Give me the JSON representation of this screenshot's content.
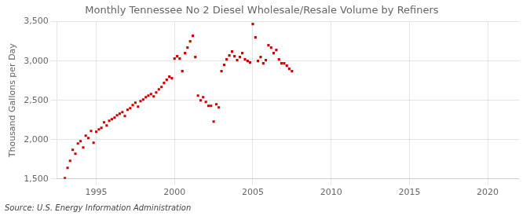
{
  "chart_data": {
    "type": "scatter",
    "title": "Monthly Tennessee No 2 Diesel Wholesale/Resale Volume by Refiners",
    "ylabel": "Thousand Gallons per Day",
    "annotation": "Source: U.S. Energy Information Administration",
    "color": "#cc0000",
    "marker": "square",
    "grid": true,
    "xlim": [
      1992.5,
      2022
    ],
    "ylim": [
      1500,
      3500
    ],
    "xticks": [
      1995,
      2000,
      2005,
      2010,
      2015,
      2020
    ],
    "yticks": [
      {
        "value": 1500,
        "label": "1,500"
      },
      {
        "value": 2000,
        "label": "2,000"
      },
      {
        "value": 2500,
        "label": "2,500"
      },
      {
        "value": 3000,
        "label": "3,000"
      },
      {
        "value": 3500,
        "label": "3,500"
      }
    ],
    "x": [
      1993.0,
      1993.17,
      1993.33,
      1993.5,
      1993.67,
      1993.83,
      1994.0,
      1994.17,
      1994.33,
      1994.5,
      1994.67,
      1994.83,
      1995.0,
      1995.17,
      1995.33,
      1995.5,
      1995.67,
      1995.83,
      1996.0,
      1996.17,
      1996.33,
      1996.5,
      1996.67,
      1996.83,
      1997.0,
      1997.17,
      1997.33,
      1997.5,
      1997.67,
      1997.83,
      1998.0,
      1998.17,
      1998.33,
      1998.5,
      1998.67,
      1998.83,
      1999.0,
      1999.17,
      1999.33,
      1999.5,
      1999.67,
      1999.83,
      2000.0,
      2000.17,
      2000.33,
      2000.5,
      2000.67,
      2000.83,
      2001.0,
      2001.17,
      2001.33,
      2001.5,
      2001.67,
      2001.83,
      2002.0,
      2002.17,
      2002.33,
      2002.5,
      2002.67,
      2002.83,
      2003.0,
      2003.17,
      2003.33,
      2003.5,
      2003.67,
      2003.83,
      2004.0,
      2004.17,
      2004.33,
      2004.5,
      2004.67,
      2004.83,
      2005.0,
      2005.17,
      2005.33,
      2005.5,
      2005.67,
      2005.83,
      2006.0,
      2006.17,
      2006.33,
      2006.5,
      2006.67,
      2006.83,
      2007.0,
      2007.17,
      2007.33,
      2007.5
    ],
    "values": [
      1510,
      1640,
      1730,
      1870,
      1820,
      1950,
      1980,
      1900,
      2050,
      2020,
      2110,
      1960,
      2100,
      2130,
      2150,
      2220,
      2180,
      2240,
      2260,
      2280,
      2310,
      2330,
      2350,
      2300,
      2380,
      2400,
      2440,
      2470,
      2420,
      2490,
      2510,
      2540,
      2560,
      2580,
      2550,
      2600,
      2640,
      2670,
      2720,
      2760,
      2800,
      2780,
      3030,
      3060,
      3030,
      2870,
      3100,
      3170,
      3250,
      3320,
      3050,
      2560,
      2500,
      2540,
      2480,
      2430,
      2430,
      2230,
      2450,
      2410,
      2870,
      2950,
      3020,
      3070,
      3120,
      3060,
      3010,
      3050,
      3100,
      3020,
      3000,
      2980,
      3470,
      3300,
      3000,
      3050,
      2970,
      3010,
      3200,
      3170,
      3100,
      3140,
      3020,
      2970,
      2970,
      2940,
      2900,
      2870
    ]
  }
}
